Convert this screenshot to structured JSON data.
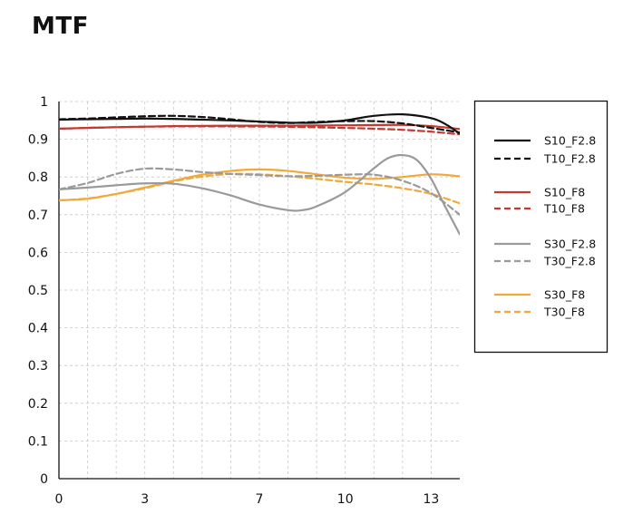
{
  "chart_data": {
    "type": "line",
    "title": "MTF",
    "xlabel": "",
    "ylabel": "",
    "xlim": [
      0,
      14
    ],
    "ylim": [
      0,
      1
    ],
    "x_ticks": [
      0,
      3,
      7,
      10,
      13
    ],
    "x_tick_labels": [
      "0",
      "3",
      "7",
      "10",
      "13"
    ],
    "y_ticks": [
      0,
      0.1,
      0.2,
      0.3,
      0.4,
      0.5,
      0.6,
      0.7,
      0.8,
      0.9,
      1
    ],
    "y_tick_labels": [
      "0",
      "0.1",
      "0.2",
      "0.3",
      "0.4",
      "0.5",
      "0.6",
      "0.7",
      "0.8",
      "0.9",
      "1"
    ],
    "grid": true,
    "legend_position": "right",
    "series": [
      {
        "name": "S10_F2.8",
        "color": "#111111",
        "dash": false,
        "group": 0,
        "x": [
          0,
          1,
          2,
          3,
          4,
          5,
          6,
          7,
          8,
          9,
          10,
          11,
          12,
          13,
          13.5,
          14
        ],
        "y": [
          0.952,
          0.953,
          0.954,
          0.955,
          0.954,
          0.952,
          0.95,
          0.947,
          0.944,
          0.944,
          0.95,
          0.962,
          0.966,
          0.956,
          0.94,
          0.915
        ]
      },
      {
        "name": "T10_F2.8",
        "color": "#111111",
        "dash": true,
        "group": 0,
        "x": [
          0,
          1,
          2,
          3,
          4,
          5,
          6,
          7,
          8,
          9,
          10,
          11,
          12,
          13,
          14
        ],
        "y": [
          0.953,
          0.955,
          0.958,
          0.961,
          0.962,
          0.959,
          0.953,
          0.946,
          0.943,
          0.946,
          0.948,
          0.948,
          0.942,
          0.93,
          0.918
        ]
      },
      {
        "name": "S10_F8",
        "color": "#c43a33",
        "dash": false,
        "group": 1,
        "x": [
          0,
          2,
          4,
          6,
          8,
          10,
          12,
          13,
          14
        ],
        "y": [
          0.928,
          0.932,
          0.935,
          0.936,
          0.936,
          0.937,
          0.938,
          0.935,
          0.927
        ]
      },
      {
        "name": "T10_F8",
        "color": "#c43a33",
        "dash": true,
        "group": 1,
        "x": [
          0,
          2,
          4,
          6,
          8,
          10,
          11,
          12,
          13,
          14
        ],
        "y": [
          0.928,
          0.932,
          0.934,
          0.934,
          0.933,
          0.93,
          0.928,
          0.925,
          0.92,
          0.913
        ]
      },
      {
        "name": "S30_F2.8",
        "color": "#9a9a9a",
        "dash": false,
        "group": 2,
        "x": [
          0,
          1,
          2,
          3,
          4,
          5,
          6,
          7,
          8,
          8.5,
          9,
          10,
          11,
          11.5,
          12,
          12.5,
          13,
          13.5,
          14
        ],
        "y": [
          0.767,
          0.772,
          0.778,
          0.783,
          0.782,
          0.77,
          0.751,
          0.727,
          0.712,
          0.712,
          0.722,
          0.76,
          0.823,
          0.85,
          0.858,
          0.845,
          0.795,
          0.72,
          0.648
        ]
      },
      {
        "name": "T30_F2.8",
        "color": "#9a9a9a",
        "dash": true,
        "group": 2,
        "x": [
          0,
          1,
          2,
          3,
          4,
          5,
          6,
          7,
          8,
          9,
          10,
          11,
          12,
          13,
          14
        ],
        "y": [
          0.767,
          0.784,
          0.808,
          0.822,
          0.82,
          0.813,
          0.808,
          0.805,
          0.802,
          0.803,
          0.806,
          0.806,
          0.79,
          0.757,
          0.7
        ]
      },
      {
        "name": "S30_F8",
        "color": "#f2a93b",
        "dash": false,
        "group": 3,
        "x": [
          0,
          1,
          2,
          3,
          4,
          5,
          6,
          7,
          8,
          9,
          10,
          11,
          12,
          13,
          14
        ],
        "y": [
          0.738,
          0.742,
          0.755,
          0.772,
          0.79,
          0.806,
          0.816,
          0.82,
          0.816,
          0.807,
          0.798,
          0.795,
          0.8,
          0.807,
          0.802
        ]
      },
      {
        "name": "T30_F8",
        "color": "#f2a93b",
        "dash": true,
        "group": 3,
        "x": [
          0,
          1,
          2,
          3,
          4,
          5,
          6,
          7,
          8,
          9,
          10,
          11,
          12,
          13,
          14
        ],
        "y": [
          0.738,
          0.743,
          0.755,
          0.77,
          0.788,
          0.801,
          0.808,
          0.807,
          0.802,
          0.795,
          0.787,
          0.78,
          0.77,
          0.755,
          0.73
        ]
      }
    ]
  }
}
